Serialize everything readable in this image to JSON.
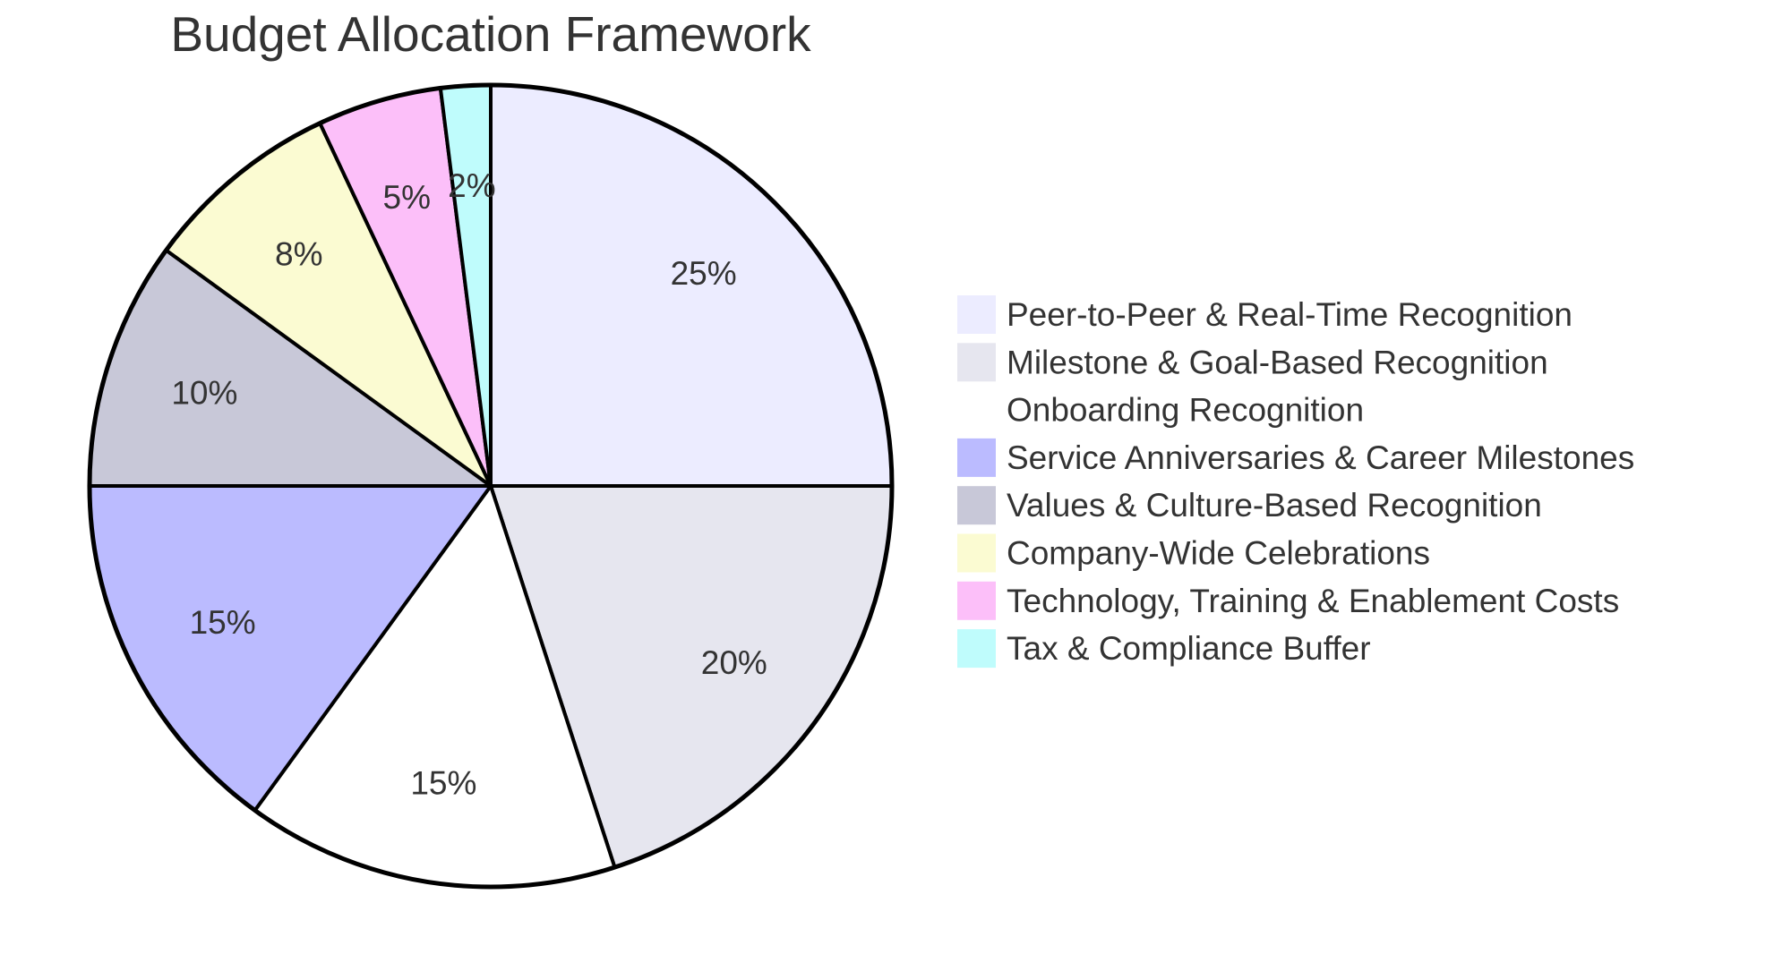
{
  "chart_data": {
    "type": "pie",
    "title": "Budget Allocation Framework",
    "slices": [
      {
        "label": "Peer-to-Peer & Real-Time Recognition",
        "value": 25,
        "display": "25%",
        "color": "#ECECFF"
      },
      {
        "label": "Milestone & Goal-Based Recognition",
        "value": 20,
        "display": "20%",
        "color": "#E6E6EF"
      },
      {
        "label": "Onboarding Recognition",
        "value": 15,
        "display": "15%",
        "color": "#FFFFFF"
      },
      {
        "label": "Service Anniversaries & Career Milestones",
        "value": 15,
        "display": "15%",
        "color": "#BBBBFF"
      },
      {
        "label": "Values & Culture-Based Recognition",
        "value": 10,
        "display": "10%",
        "color": "#C8C8D8"
      },
      {
        "label": "Company-Wide Celebrations",
        "value": 8,
        "display": "8%",
        "color": "#FBFBD2"
      },
      {
        "label": "Technology, Training & Enablement Costs",
        "value": 5,
        "display": "5%",
        "color": "#FCBFF9"
      },
      {
        "label": "Tax & Compliance Buffer",
        "value": 2,
        "display": "2%",
        "color": "#BFFCFC"
      }
    ],
    "legend_position": "right",
    "slice_border_color": "#000000",
    "start_angle": "top",
    "direction": "clockwise"
  }
}
